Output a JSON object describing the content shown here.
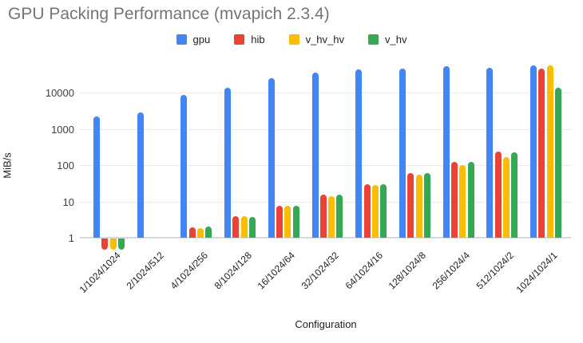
{
  "title": "GPU Packing Performance (mvapich 2.3.4)",
  "colors": {
    "gpu": "#4285F4",
    "hib": "#EA4335",
    "v_hv_hv": "#FBBC04",
    "v_hv": "#34A853",
    "title_text": "#757575",
    "gridline": "#e8eaed",
    "baseline": "#d6d9dd",
    "axis_text": "#202124"
  },
  "chart_data": {
    "type": "bar",
    "log_scale": true,
    "title": "GPU Packing Performance (mvapich 2.3.4)",
    "xlabel": "Configuration",
    "ylabel": "MiB/s",
    "yticks": [
      1,
      10,
      100,
      1000,
      10000
    ],
    "ytick_labels": [
      "1",
      "10",
      "100",
      "1000",
      "10000"
    ],
    "ylim": [
      0.4,
      100000
    ],
    "baseline_value": 1,
    "grid": true,
    "legend_position": "top",
    "categories": [
      "1/1024/1024",
      "2/1024/512",
      "4/1024/256",
      "8/1024/128",
      "16/1024/64",
      "32/1024/32",
      "64/1024/16",
      "128/1024/8",
      "256/1024/4",
      "512/1024/2",
      "1024/1024/1"
    ],
    "series": [
      {
        "name": "gpu",
        "color": "#4285F4",
        "values": [
          2200,
          2800,
          8600,
          13500,
          25000,
          36000,
          43000,
          46000,
          52000,
          48000,
          55000
        ]
      },
      {
        "name": "hib",
        "color": "#EA4335",
        "values": [
          0.5,
          1,
          1.9,
          3.9,
          7.6,
          15,
          30,
          60,
          120,
          240,
          46000
        ]
      },
      {
        "name": "v_hv_hv",
        "color": "#FBBC04",
        "values": [
          0.5,
          1,
          1.8,
          4.0,
          7.4,
          14,
          28,
          55,
          100,
          170,
          55000
        ]
      },
      {
        "name": "v_hv",
        "color": "#34A853",
        "values": [
          0.5,
          1,
          2.0,
          3.8,
          7.7,
          15,
          30,
          60,
          120,
          220,
          13500
        ]
      }
    ]
  }
}
